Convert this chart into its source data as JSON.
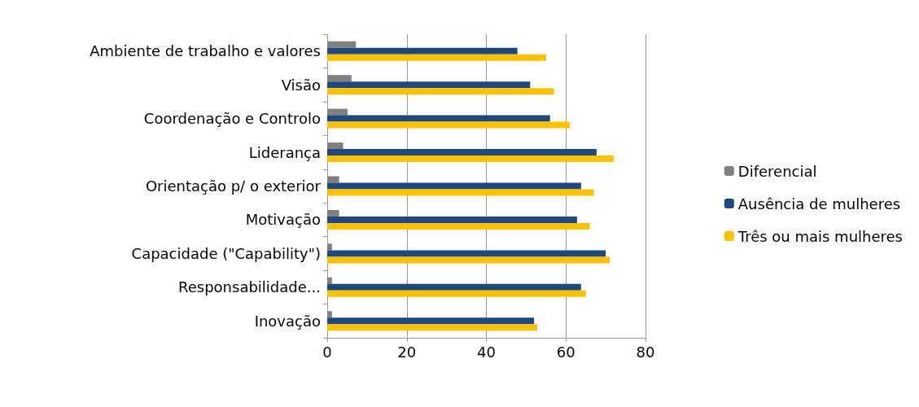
{
  "chart_data": {
    "type": "bar",
    "orientation": "horizontal",
    "categories": [
      "Ambiente de trabalho e valores",
      "Visão",
      "Coordenação e Controlo",
      "Liderança",
      "Orientação p/ o exterior",
      "Motivação",
      "Capacidade (\"Capability\")",
      "Responsabilidade...",
      "Inovação"
    ],
    "series": [
      {
        "name": "Diferencial",
        "color": "#808080",
        "values": [
          7.2,
          6.1,
          5.1,
          4,
          3,
          3,
          1.2,
          1.2,
          1.2
        ]
      },
      {
        "name": "Ausência de mulheres",
        "color": "#1f497d",
        "values": [
          47.8,
          51,
          56,
          67.7,
          63.8,
          62.8,
          70,
          63.8,
          52
        ]
      },
      {
        "name": "Três ou mais mulheres",
        "color": "#ffc000",
        "values": [
          55,
          57,
          61,
          72,
          67,
          66,
          71,
          65,
          52.8
        ]
      }
    ],
    "xlim": [
      0,
      80
    ],
    "xticks": [
      0,
      20,
      40,
      60,
      80
    ],
    "grid": "x",
    "legend": "right"
  }
}
